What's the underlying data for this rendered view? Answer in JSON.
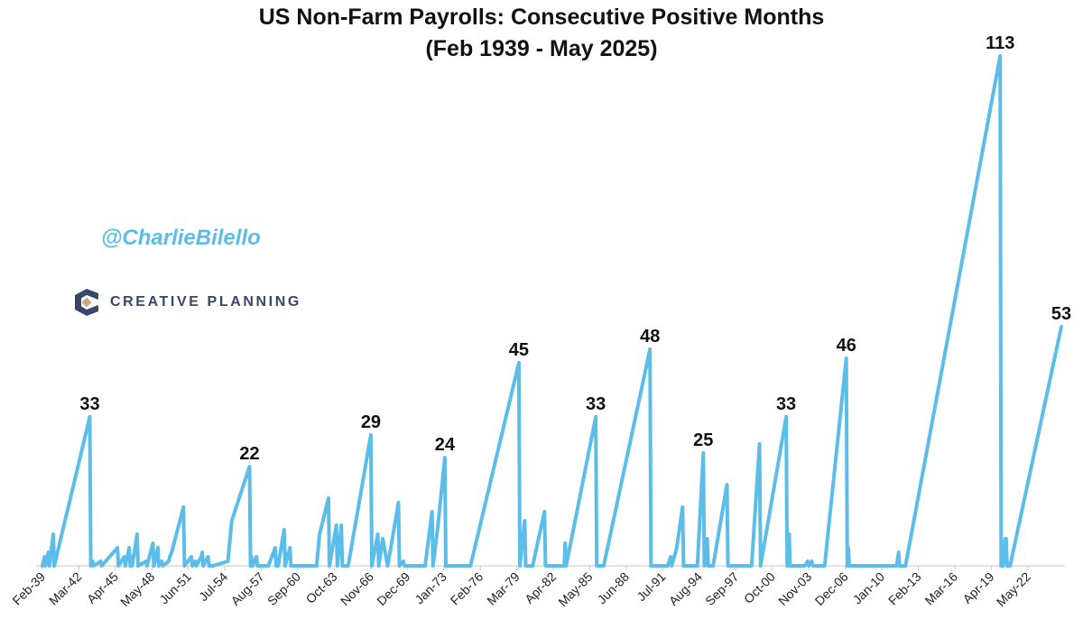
{
  "chart_data": {
    "type": "line",
    "title": "US Non-Farm Payrolls: Consecutive Positive Months",
    "subtitle": "(Feb 1939 - May 2025)",
    "color": "#5bbde8",
    "x_ticks": [
      "Feb-39",
      "Mar-42",
      "Apr-45",
      "May-48",
      "Jun-51",
      "Jul-54",
      "Aug-57",
      "Sep-60",
      "Oct-63",
      "Nov-66",
      "Dec-69",
      "Jan-73",
      "Feb-76",
      "Mar-79",
      "Apr-82",
      "May-85",
      "Jun-88",
      "Jul-91",
      "Aug-94",
      "Sep-97",
      "Oct-00",
      "Nov-03",
      "Dec-06",
      "Jan-10",
      "Feb-13",
      "Mar-16",
      "Apr-19",
      "May-22"
    ],
    "ylim": [
      0,
      120
    ],
    "y_axis_visible": false,
    "grid": false,
    "points": [
      [
        "Feb-39",
        0
      ],
      [
        "Apr-39",
        2
      ],
      [
        "May-39",
        0
      ],
      [
        "Aug-39",
        3
      ],
      [
        "Sep-39",
        0
      ],
      [
        "Jan-40",
        7
      ],
      [
        "Feb-40",
        0
      ],
      [
        "Feb-43",
        33
      ],
      [
        "Mar-43",
        0
      ],
      [
        "May-43",
        1
      ],
      [
        "Jun-43",
        0
      ],
      [
        "Jan-44",
        1
      ],
      [
        "Feb-44",
        0
      ],
      [
        "Jun-45",
        4
      ],
      [
        "Jul-45",
        0
      ],
      [
        "Jan-46",
        2
      ],
      [
        "Feb-46",
        0
      ],
      [
        "Jun-46",
        4
      ],
      [
        "Jul-46",
        0
      ],
      [
        "Aug-46",
        2
      ],
      [
        "Sep-46",
        0
      ],
      [
        "Feb-47",
        7
      ],
      [
        "Mar-47",
        0
      ],
      [
        "Nov-47",
        1
      ],
      [
        "Dec-47",
        0
      ],
      [
        "Jun-48",
        5
      ],
      [
        "Jul-48",
        0
      ],
      [
        "Nov-48",
        4
      ],
      [
        "Dec-48",
        0
      ],
      [
        "Mar-49",
        1
      ],
      [
        "Apr-49",
        0
      ],
      [
        "Oct-49",
        1
      ],
      [
        "Nov-49",
        2
      ],
      [
        "Jan-50",
        3
      ],
      [
        "Jan-51",
        13
      ],
      [
        "Feb-51",
        0
      ],
      [
        "Sep-51",
        2
      ],
      [
        "Oct-51",
        0
      ],
      [
        "Jan-52",
        1
      ],
      [
        "Feb-52",
        0
      ],
      [
        "Jul-52",
        2
      ],
      [
        "Aug-52",
        3
      ],
      [
        "Sep-52",
        0
      ],
      [
        "Feb-53",
        2
      ],
      [
        "Mar-53",
        0
      ],
      [
        "Jul-53",
        0
      ],
      [
        "Oct-54",
        1
      ],
      [
        "Feb-55",
        10
      ],
      [
        "Aug-56",
        22
      ],
      [
        "Sep-56",
        0
      ],
      [
        "Oct-56",
        2
      ],
      [
        "Nov-56",
        0
      ],
      [
        "Mar-57",
        2
      ],
      [
        "Apr-57",
        0
      ],
      [
        "Aug-57",
        0
      ],
      [
        "Mar-58",
        0
      ],
      [
        "Oct-58",
        4
      ],
      [
        "Nov-58",
        0
      ],
      [
        "Jan-59",
        0
      ],
      [
        "Jul-59",
        8
      ],
      [
        "Aug-59",
        0
      ],
      [
        "Jan-60",
        4
      ],
      [
        "Feb-60",
        0
      ],
      [
        "Jan-61",
        0
      ],
      [
        "Apr-62",
        0
      ],
      [
        "Jul-62",
        7
      ],
      [
        "Apr-63",
        15
      ],
      [
        "May-63",
        0
      ],
      [
        "Dec-63",
        9
      ],
      [
        "Jan-64",
        0
      ],
      [
        "May-64",
        9
      ],
      [
        "Jun-64",
        0
      ],
      [
        "Dec-64",
        0
      ],
      [
        "Nov-66",
        29
      ],
      [
        "Dec-66",
        0
      ],
      [
        "Jun-67",
        7
      ],
      [
        "Jul-67",
        0
      ],
      [
        "Nov-67",
        6
      ],
      [
        "Apr-68",
        0
      ],
      [
        "Aug-68",
        5
      ],
      [
        "Mar-69",
        14
      ],
      [
        "Apr-69",
        0
      ],
      [
        "Aug-69",
        1
      ],
      [
        "Sep-69",
        0
      ],
      [
        "Dec-70",
        0
      ],
      [
        "Jun-71",
        0
      ],
      [
        "Jan-72",
        12
      ],
      [
        "Feb-72",
        0
      ],
      [
        "Jul-72",
        9
      ],
      [
        "Feb-73",
        24
      ],
      [
        "Mar-73",
        0
      ],
      [
        "Apr-75",
        0
      ],
      [
        "May-79",
        45
      ],
      [
        "Jun-79",
        0
      ],
      [
        "Nov-79",
        10
      ],
      [
        "Dec-79",
        0
      ],
      [
        "Apr-80",
        0
      ],
      [
        "Jul-80",
        0
      ],
      [
        "Jul-81",
        12
      ],
      [
        "Aug-81",
        0
      ],
      [
        "Mar-83",
        0
      ],
      [
        "Apr-83",
        5
      ],
      [
        "May-83",
        0
      ],
      [
        "Nov-85",
        33
      ],
      [
        "Dec-85",
        0
      ],
      [
        "Jul-86",
        0
      ],
      [
        "Jun-90",
        48
      ],
      [
        "Jul-90",
        0
      ],
      [
        "Dec-91",
        0
      ],
      [
        "Mar-92",
        2
      ],
      [
        "Apr-92",
        0
      ],
      [
        "Sep-92",
        4
      ],
      [
        "Mar-93",
        13
      ],
      [
        "Apr-93",
        0
      ],
      [
        "Jun-93",
        0
      ],
      [
        "Jun-94",
        0
      ],
      [
        "Dec-94",
        25
      ],
      [
        "Jan-95",
        0
      ],
      [
        "Apr-95",
        6
      ],
      [
        "May-95",
        0
      ],
      [
        "Oct-95",
        0
      ],
      [
        "Dec-96",
        18
      ],
      [
        "Jan-97",
        0
      ],
      [
        "Sep-97",
        0
      ],
      [
        "Jan-99",
        0
      ],
      [
        "Sep-99",
        27
      ],
      [
        "Oct-99",
        0
      ],
      [
        "Dec-01",
        33
      ],
      [
        "Jan-02",
        0
      ],
      [
        "Mar-02",
        7
      ],
      [
        "Apr-02",
        0
      ],
      [
        "Jan-03",
        0
      ],
      [
        "Jul-03",
        0
      ],
      [
        "Oct-03",
        1
      ],
      [
        "Nov-03",
        0
      ],
      [
        "Feb-04",
        1
      ],
      [
        "Mar-04",
        0
      ],
      [
        "Mar-05",
        0
      ],
      [
        "Jan-07",
        46
      ],
      [
        "Feb-07",
        0
      ],
      [
        "Mar-07",
        4
      ],
      [
        "Apr-07",
        0
      ],
      [
        "Dec-07",
        0
      ],
      [
        "Apr-11",
        0
      ],
      [
        "Jun-11",
        3
      ],
      [
        "Jul-11",
        0
      ],
      [
        "Jan-12",
        0
      ],
      [
        "Jan-20",
        113
      ],
      [
        "Feb-20",
        0
      ],
      [
        "Apr-20",
        0
      ],
      [
        "Jun-20",
        6
      ],
      [
        "Jul-20",
        6
      ],
      [
        "Aug-20",
        0
      ],
      [
        "Nov-20",
        0
      ],
      [
        "Mar-25",
        53
      ]
    ],
    "data_labels": [
      {
        "x": "Feb-43",
        "value": 33,
        "text": "33"
      },
      {
        "x": "Aug-56",
        "value": 22,
        "text": "22"
      },
      {
        "x": "Nov-66",
        "value": 29,
        "text": "29"
      },
      {
        "x": "Feb-73",
        "value": 24,
        "text": "24"
      },
      {
        "x": "May-79",
        "value": 45,
        "text": "45"
      },
      {
        "x": "Nov-85",
        "value": 33,
        "text": "33"
      },
      {
        "x": "Jun-90",
        "value": 48,
        "text": "48"
      },
      {
        "x": "Dec-94",
        "value": 25,
        "text": "25"
      },
      {
        "x": "Dec-01",
        "value": 33,
        "text": "33"
      },
      {
        "x": "Jan-07",
        "value": 46,
        "text": "46"
      },
      {
        "x": "Jan-20",
        "value": 113,
        "text": "113"
      },
      {
        "x": "Mar-25",
        "value": 53,
        "text": "53"
      }
    ]
  },
  "watermark": {
    "handle": "@CharlieBilello"
  },
  "brand": {
    "name": "CREATIVE PLANNING",
    "colors": [
      "#37476a",
      "#c9a978"
    ]
  }
}
